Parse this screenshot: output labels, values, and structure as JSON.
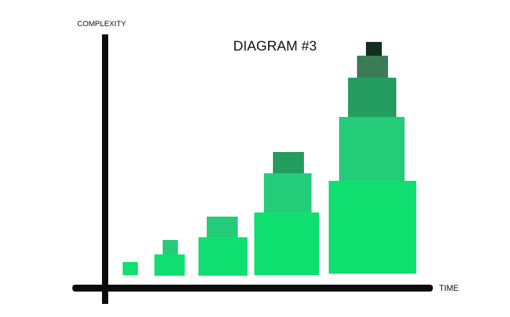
{
  "title": "DIAGRAM #3",
  "y_axis_label": "COMPLEXITY",
  "x_axis_label": "TIME"
}
